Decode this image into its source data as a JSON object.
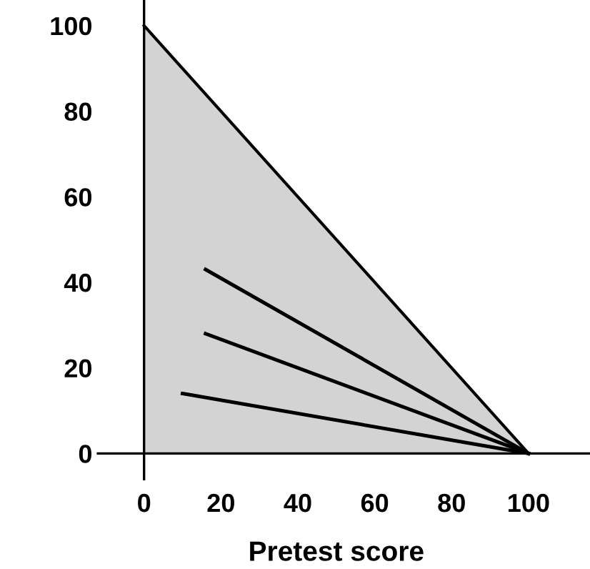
{
  "chart_data": {
    "type": "line",
    "xlabel": "Pretest score",
    "xlim": [
      -12,
      116
    ],
    "ylim": [
      -6,
      106
    ],
    "xticks": [
      0,
      20,
      40,
      60,
      80,
      100
    ],
    "yticks": [
      0,
      20,
      40,
      60,
      80,
      100
    ],
    "grid": false,
    "marker": "none",
    "line_style": "solid",
    "series": [
      {
        "type": "area",
        "color": "#d3d3d3",
        "x": [
          0,
          100
        ],
        "values": [
          100,
          0
        ]
      },
      {
        "color": "#000000",
        "x": [
          16,
          100
        ],
        "values": [
          43,
          0
        ]
      },
      {
        "color": "#000000",
        "x": [
          16,
          100
        ],
        "values": [
          28,
          0
        ]
      },
      {
        "color": "#000000",
        "x": [
          10,
          100
        ],
        "values": [
          14,
          0
        ]
      }
    ]
  }
}
